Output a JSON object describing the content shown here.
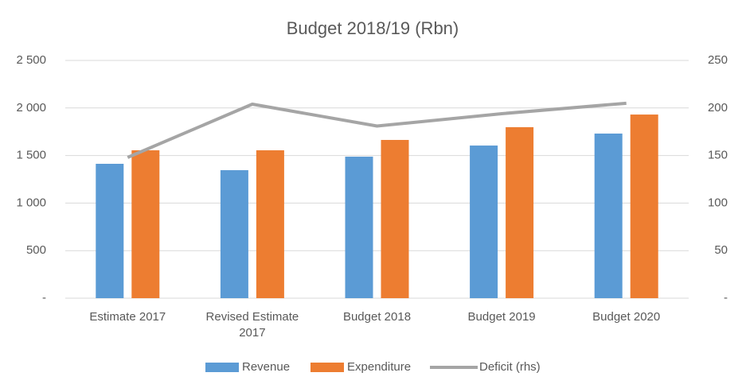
{
  "chart_data": {
    "type": "bar-line",
    "title": "Budget 2018/19 (Rbn)",
    "categories": [
      "Estimate 2017",
      "Revised Estimate 2017",
      "Budget 2018",
      "Budget 2019",
      "Budget 2020"
    ],
    "series": [
      {
        "name": "Revenue",
        "type": "bar",
        "color": "#5b9bd5",
        "values": [
          1413,
          1346,
          1488,
          1605,
          1731
        ]
      },
      {
        "name": "Expenditure",
        "type": "bar",
        "color": "#ed7d31",
        "values": [
          1555,
          1555,
          1664,
          1798,
          1931
        ]
      },
      {
        "name": "Deficit (rhs)",
        "type": "line",
        "axis": "y2",
        "color": "#a5a5a5",
        "values": [
          148,
          204,
          181,
          194,
          205
        ]
      }
    ],
    "ylim": [
      0,
      2500
    ],
    "yticks": [
      {
        "value": 0,
        "label": "-"
      },
      500,
      {
        "value": 1000,
        "label": "1 000"
      },
      {
        "value": 1500,
        "label": "1 500"
      },
      {
        "value": 2000,
        "label": "2 000"
      },
      {
        "value": 2500,
        "label": "2 500"
      }
    ],
    "y2lim": [
      0,
      250
    ],
    "y2ticks": [
      {
        "value": 0,
        "label": "-"
      },
      50,
      100,
      150,
      200,
      250
    ],
    "grid": true,
    "legend": "bottom"
  }
}
